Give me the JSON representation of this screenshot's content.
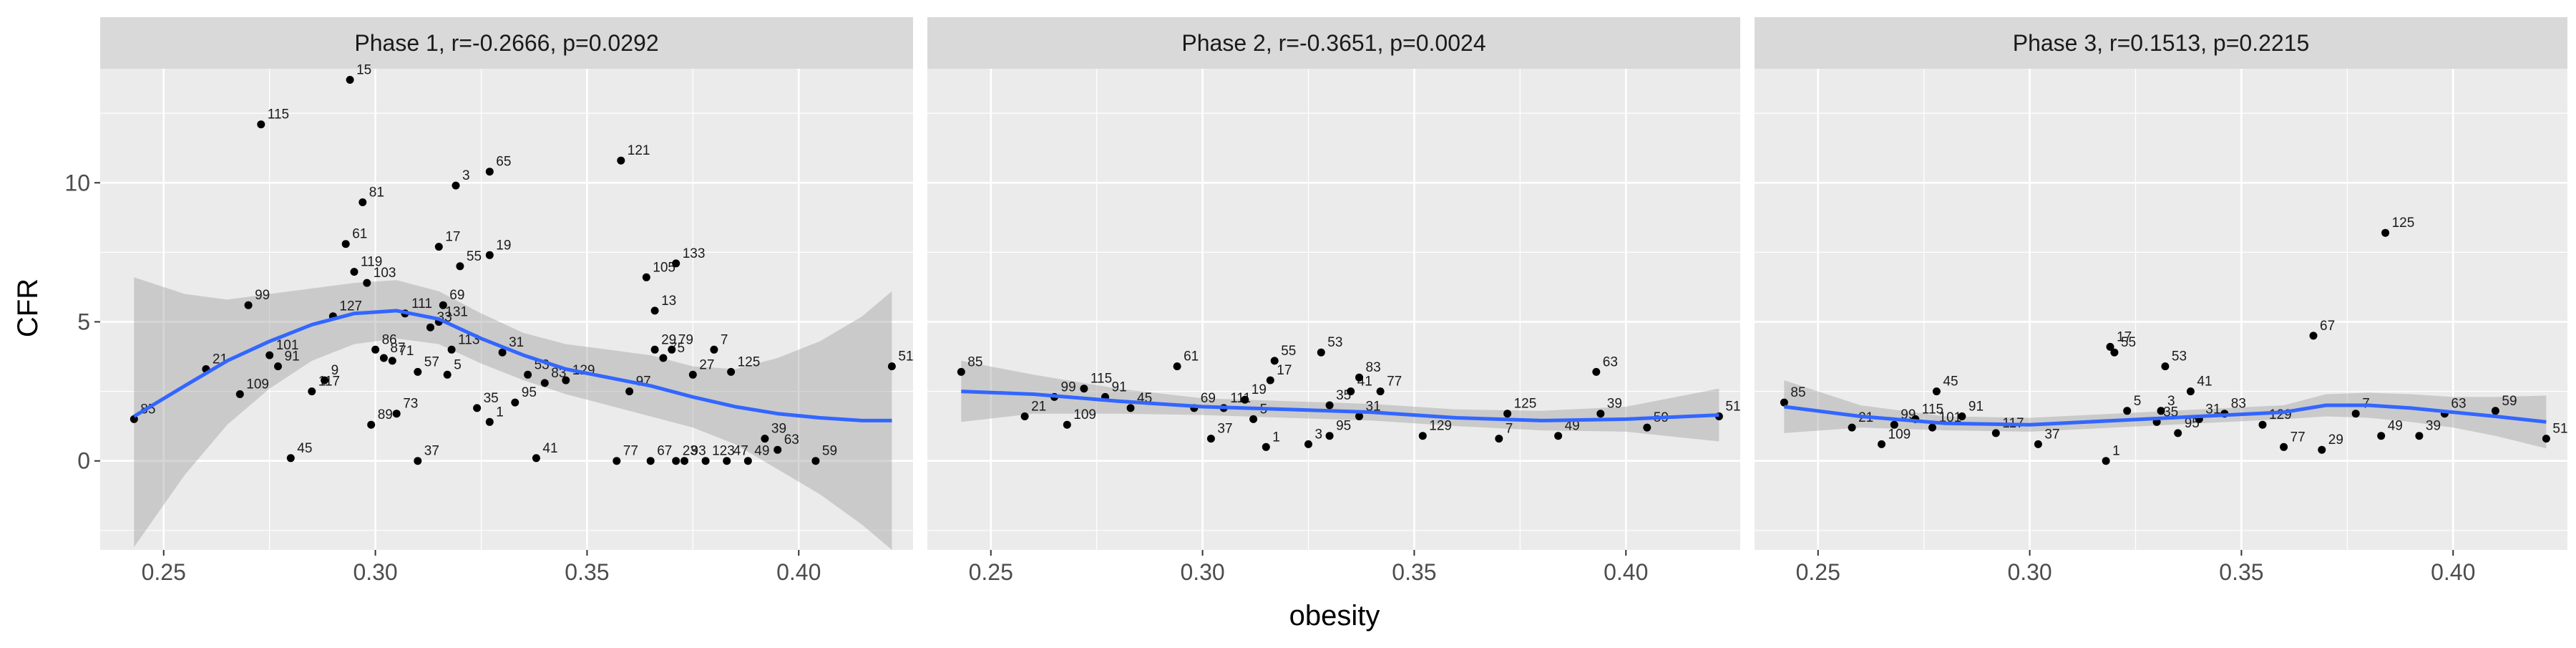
{
  "chart_data": {
    "type": "scatter",
    "xlabel": "obesity",
    "ylabel": "CFR",
    "xlim": [
      0.235,
      0.427
    ],
    "ylim": [
      -3.2,
      14.1
    ],
    "x_ticks": [
      0.25,
      0.3,
      0.35,
      0.4
    ],
    "x_tick_labels": [
      "0.25",
      "0.30",
      "0.35",
      "0.40"
    ],
    "y_ticks": [
      0,
      5,
      10
    ],
    "y_tick_labels": [
      "0",
      "5",
      "10"
    ],
    "grid": true,
    "smooth_color": "#3366ff",
    "band_color": "#999999",
    "point_color": "#000000",
    "panel_bg": "#ebebeb",
    "strip_bg": "#d9d9d9",
    "panels": [
      {
        "title": "Phase 1, r=-0.2666, p=0.0292",
        "points": [
          {
            "label": "85",
            "x": 0.243,
            "y": 1.5
          },
          {
            "label": "21",
            "x": 0.26,
            "y": 3.3
          },
          {
            "label": "109",
            "x": 0.268,
            "y": 2.4
          },
          {
            "label": "101",
            "x": 0.275,
            "y": 3.8
          },
          {
            "label": "99",
            "x": 0.27,
            "y": 5.6
          },
          {
            "label": "115",
            "x": 0.273,
            "y": 12.1
          },
          {
            "label": "91",
            "x": 0.277,
            "y": 3.4
          },
          {
            "label": "45",
            "x": 0.28,
            "y": 0.1
          },
          {
            "label": "117",
            "x": 0.285,
            "y": 2.5
          },
          {
            "label": "9",
            "x": 0.288,
            "y": 2.9
          },
          {
            "label": "127",
            "x": 0.29,
            "y": 5.2
          },
          {
            "label": "119",
            "x": 0.295,
            "y": 6.8
          },
          {
            "label": "61",
            "x": 0.293,
            "y": 7.8
          },
          {
            "label": "15",
            "x": 0.294,
            "y": 13.7
          },
          {
            "label": "103",
            "x": 0.298,
            "y": 6.4
          },
          {
            "label": "81",
            "x": 0.297,
            "y": 9.3
          },
          {
            "label": "89",
            "x": 0.299,
            "y": 1.3
          },
          {
            "label": "86",
            "x": 0.3,
            "y": 4.0
          },
          {
            "label": "87",
            "x": 0.302,
            "y": 3.7
          },
          {
            "label": "71",
            "x": 0.304,
            "y": 3.6
          },
          {
            "label": "73",
            "x": 0.305,
            "y": 1.7
          },
          {
            "label": "111",
            "x": 0.307,
            "y": 5.3
          },
          {
            "label": "57",
            "x": 0.31,
            "y": 3.2
          },
          {
            "label": "37",
            "x": 0.31,
            "y": 0.0
          },
          {
            "label": "33",
            "x": 0.313,
            "y": 4.8
          },
          {
            "label": "131",
            "x": 0.315,
            "y": 5.0
          },
          {
            "label": "17",
            "x": 0.315,
            "y": 7.7
          },
          {
            "label": "69",
            "x": 0.316,
            "y": 5.6
          },
          {
            "label": "5",
            "x": 0.317,
            "y": 3.1
          },
          {
            "label": "3",
            "x": 0.319,
            "y": 9.9
          },
          {
            "label": "113",
            "x": 0.318,
            "y": 4.0
          },
          {
            "label": "55",
            "x": 0.32,
            "y": 7.0
          },
          {
            "label": "35",
            "x": 0.324,
            "y": 1.9
          },
          {
            "label": "65",
            "x": 0.327,
            "y": 10.4
          },
          {
            "label": "19",
            "x": 0.327,
            "y": 7.4
          },
          {
            "label": "1",
            "x": 0.327,
            "y": 1.4
          },
          {
            "label": "31",
            "x": 0.33,
            "y": 3.9
          },
          {
            "label": "95",
            "x": 0.333,
            "y": 2.1
          },
          {
            "label": "41",
            "x": 0.338,
            "y": 0.1
          },
          {
            "label": "53",
            "x": 0.336,
            "y": 3.1
          },
          {
            "label": "83",
            "x": 0.34,
            "y": 2.8
          },
          {
            "label": "77",
            "x": 0.357,
            "y": 0.0
          },
          {
            "label": "121",
            "x": 0.358,
            "y": 10.8
          },
          {
            "label": "129",
            "x": 0.345,
            "y": 2.9
          },
          {
            "label": "97",
            "x": 0.36,
            "y": 2.5
          },
          {
            "label": "105",
            "x": 0.364,
            "y": 6.6
          },
          {
            "label": "67",
            "x": 0.365,
            "y": 0.0
          },
          {
            "label": "29",
            "x": 0.366,
            "y": 4.0
          },
          {
            "label": "13",
            "x": 0.366,
            "y": 5.4
          },
          {
            "label": "75",
            "x": 0.368,
            "y": 3.7
          },
          {
            "label": "133",
            "x": 0.371,
            "y": 7.1
          },
          {
            "label": "79",
            "x": 0.37,
            "y": 4.0
          },
          {
            "label": "23",
            "x": 0.371,
            "y": 0.0
          },
          {
            "label": "93",
            "x": 0.373,
            "y": 0.0
          },
          {
            "label": "27",
            "x": 0.375,
            "y": 3.1
          },
          {
            "label": "123",
            "x": 0.378,
            "y": 0.0
          },
          {
            "label": "7",
            "x": 0.38,
            "y": 4.0
          },
          {
            "label": "125",
            "x": 0.384,
            "y": 3.2
          },
          {
            "label": "47",
            "x": 0.383,
            "y": 0.0
          },
          {
            "label": "49",
            "x": 0.388,
            "y": 0.0
          },
          {
            "label": "39",
            "x": 0.392,
            "y": 0.8
          },
          {
            "label": "63",
            "x": 0.395,
            "y": 0.4
          },
          {
            "label": "59",
            "x": 0.404,
            "y": 0.0
          },
          {
            "label": "51",
            "x": 0.422,
            "y": 3.4
          }
        ],
        "smooth": {
          "x": [
            0.243,
            0.255,
            0.265,
            0.275,
            0.285,
            0.295,
            0.305,
            0.315,
            0.325,
            0.335,
            0.345,
            0.355,
            0.365,
            0.375,
            0.385,
            0.395,
            0.405,
            0.415,
            0.422
          ],
          "y": [
            1.6,
            2.7,
            3.6,
            4.3,
            4.9,
            5.3,
            5.4,
            5.1,
            4.4,
            3.8,
            3.3,
            3.0,
            2.7,
            2.3,
            1.95,
            1.7,
            1.55,
            1.45,
            1.45
          ],
          "lo": [
            -3.1,
            -0.5,
            1.3,
            2.6,
            3.6,
            4.2,
            4.4,
            4.2,
            3.5,
            2.9,
            2.4,
            2.0,
            1.6,
            1.2,
            0.6,
            -0.3,
            -1.2,
            -2.3,
            -3.2
          ],
          "hi": [
            6.6,
            6.0,
            5.8,
            6.0,
            6.2,
            6.4,
            6.5,
            6.1,
            5.3,
            4.6,
            4.2,
            4.0,
            3.8,
            3.4,
            3.3,
            3.7,
            4.3,
            5.2,
            6.1
          ]
        }
      },
      {
        "title": "Phase 2, r=-0.3651, p=0.0024",
        "points": [
          {
            "label": "85",
            "x": 0.243,
            "y": 3.2
          },
          {
            "label": "21",
            "x": 0.258,
            "y": 1.6
          },
          {
            "label": "99",
            "x": 0.265,
            "y": 2.3
          },
          {
            "label": "109",
            "x": 0.268,
            "y": 1.3
          },
          {
            "label": "115",
            "x": 0.272,
            "y": 2.6
          },
          {
            "label": "91",
            "x": 0.277,
            "y": 2.3
          },
          {
            "label": "45",
            "x": 0.283,
            "y": 1.9
          },
          {
            "label": "61",
            "x": 0.294,
            "y": 3.4
          },
          {
            "label": "69",
            "x": 0.298,
            "y": 1.9
          },
          {
            "label": "111",
            "x": 0.305,
            "y": 1.9
          },
          {
            "label": "37",
            "x": 0.302,
            "y": 0.8
          },
          {
            "label": "19",
            "x": 0.31,
            "y": 2.2
          },
          {
            "label": "55",
            "x": 0.317,
            "y": 3.6
          },
          {
            "label": "5",
            "x": 0.312,
            "y": 1.5
          },
          {
            "label": "17",
            "x": 0.316,
            "y": 2.9
          },
          {
            "label": "53",
            "x": 0.328,
            "y": 3.9
          },
          {
            "label": "1",
            "x": 0.315,
            "y": 0.5
          },
          {
            "label": "3",
            "x": 0.325,
            "y": 0.6
          },
          {
            "label": "35",
            "x": 0.33,
            "y": 2.0
          },
          {
            "label": "41",
            "x": 0.335,
            "y": 2.5
          },
          {
            "label": "31",
            "x": 0.337,
            "y": 1.6
          },
          {
            "label": "95",
            "x": 0.33,
            "y": 0.9
          },
          {
            "label": "83",
            "x": 0.337,
            "y": 3.0
          },
          {
            "label": "77",
            "x": 0.342,
            "y": 2.5
          },
          {
            "label": "129",
            "x": 0.352,
            "y": 0.9
          },
          {
            "label": "125",
            "x": 0.372,
            "y": 1.7
          },
          {
            "label": "7",
            "x": 0.37,
            "y": 0.8
          },
          {
            "label": "49",
            "x": 0.384,
            "y": 0.9
          },
          {
            "label": "63",
            "x": 0.393,
            "y": 3.2
          },
          {
            "label": "39",
            "x": 0.394,
            "y": 1.7
          },
          {
            "label": "59",
            "x": 0.405,
            "y": 1.2
          },
          {
            "label": "51",
            "x": 0.422,
            "y": 1.6
          }
        ],
        "smooth": {
          "x": [
            0.243,
            0.26,
            0.28,
            0.3,
            0.32,
            0.34,
            0.36,
            0.38,
            0.4,
            0.422
          ],
          "y": [
            2.5,
            2.4,
            2.15,
            1.95,
            1.85,
            1.75,
            1.55,
            1.45,
            1.5,
            1.65
          ],
          "lo": [
            1.4,
            1.7,
            1.7,
            1.65,
            1.55,
            1.45,
            1.25,
            1.1,
            1.05,
            0.7
          ],
          "hi": [
            3.6,
            3.1,
            2.6,
            2.25,
            2.15,
            2.05,
            1.85,
            1.8,
            1.95,
            2.6
          ]
        }
      },
      {
        "title": "Phase 3, r=0.1513, p=0.2215",
        "points": [
          {
            "label": "85",
            "x": 0.242,
            "y": 2.1
          },
          {
            "label": "21",
            "x": 0.258,
            "y": 1.2
          },
          {
            "label": "109",
            "x": 0.265,
            "y": 0.6
          },
          {
            "label": "99",
            "x": 0.268,
            "y": 1.3
          },
          {
            "label": "115",
            "x": 0.273,
            "y": 1.5
          },
          {
            "label": "45",
            "x": 0.278,
            "y": 2.5
          },
          {
            "label": "101",
            "x": 0.277,
            "y": 1.2
          },
          {
            "label": "91",
            "x": 0.284,
            "y": 1.6
          },
          {
            "label": "117",
            "x": 0.292,
            "y": 1.0
          },
          {
            "label": "37",
            "x": 0.302,
            "y": 0.6
          },
          {
            "label": "17",
            "x": 0.319,
            "y": 4.1
          },
          {
            "label": "55",
            "x": 0.32,
            "y": 3.9
          },
          {
            "label": "1",
            "x": 0.318,
            "y": 0.0
          },
          {
            "label": "5",
            "x": 0.323,
            "y": 1.8
          },
          {
            "label": "35",
            "x": 0.33,
            "y": 1.4
          },
          {
            "label": "53",
            "x": 0.332,
            "y": 3.4
          },
          {
            "label": "3",
            "x": 0.331,
            "y": 1.8
          },
          {
            "label": "95",
            "x": 0.335,
            "y": 1.0
          },
          {
            "label": "41",
            "x": 0.338,
            "y": 2.5
          },
          {
            "label": "31",
            "x": 0.34,
            "y": 1.5
          },
          {
            "label": "83",
            "x": 0.346,
            "y": 1.7
          },
          {
            "label": "129",
            "x": 0.355,
            "y": 1.3
          },
          {
            "label": "77",
            "x": 0.36,
            "y": 0.5
          },
          {
            "label": "67",
            "x": 0.367,
            "y": 4.5
          },
          {
            "label": "29",
            "x": 0.369,
            "y": 0.4
          },
          {
            "label": "7",
            "x": 0.377,
            "y": 1.7
          },
          {
            "label": "125",
            "x": 0.384,
            "y": 8.2
          },
          {
            "label": "49",
            "x": 0.383,
            "y": 0.9
          },
          {
            "label": "39",
            "x": 0.392,
            "y": 0.9
          },
          {
            "label": "63",
            "x": 0.398,
            "y": 1.7
          },
          {
            "label": "59",
            "x": 0.41,
            "y": 1.8
          },
          {
            "label": "51",
            "x": 0.422,
            "y": 0.8
          }
        ],
        "smooth": {
          "x": [
            0.242,
            0.26,
            0.28,
            0.3,
            0.32,
            0.34,
            0.36,
            0.37,
            0.38,
            0.39,
            0.4,
            0.41,
            0.422
          ],
          "y": [
            1.95,
            1.6,
            1.35,
            1.3,
            1.45,
            1.6,
            1.75,
            2.0,
            2.0,
            1.9,
            1.75,
            1.6,
            1.4
          ],
          "lo": [
            1.0,
            1.2,
            1.1,
            1.05,
            1.2,
            1.35,
            1.5,
            1.6,
            1.55,
            1.4,
            1.2,
            0.9,
            0.45
          ],
          "hi": [
            2.9,
            2.0,
            1.6,
            1.55,
            1.7,
            1.85,
            2.0,
            2.4,
            2.45,
            2.4,
            2.3,
            2.3,
            2.35
          ]
        }
      }
    ]
  }
}
